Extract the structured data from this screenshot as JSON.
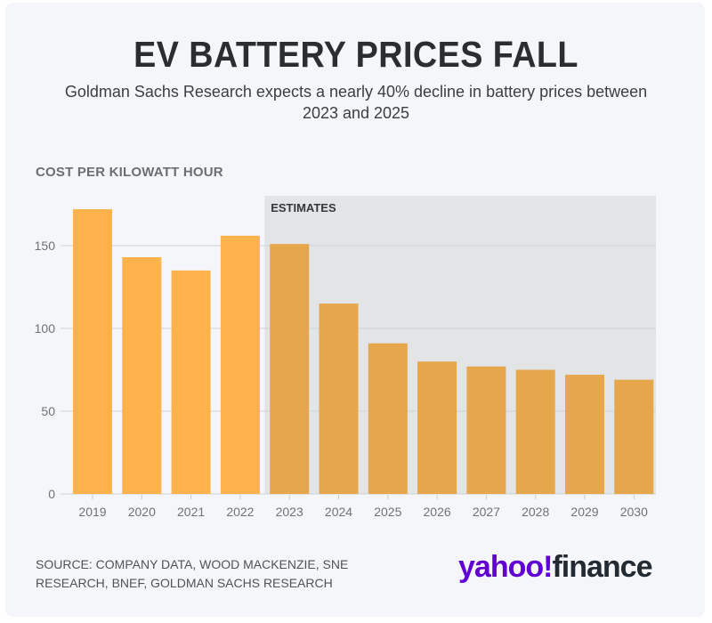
{
  "title": "EV BATTERY PRICES FALL",
  "subtitle": "Goldman Sachs Research expects a nearly 40% decline in battery prices between 2023 and 2025",
  "source": "SOURCE: COMPANY DATA, WOOD MACKENZIE, SNE RESEARCH, BNEF, GOLDMAN SACHS RESEARCH",
  "logo": {
    "brand": "yahoo!",
    "product": "finance",
    "brand_color": "#6001d2",
    "product_color": "#232a31"
  },
  "colors": {
    "actual_bar": "#fdb24b",
    "estimate_bar": "#e5a64c",
    "estimate_region": "#e2e4e6",
    "gridline": "#cfd3d8"
  },
  "chart_data": {
    "type": "bar",
    "title": "EV BATTERY PRICES FALL",
    "ylabel": "COST PER KILOWATT HOUR",
    "xlabel": "",
    "categories": [
      "2019",
      "2020",
      "2021",
      "2022",
      "2023",
      "2024",
      "2025",
      "2026",
      "2027",
      "2028",
      "2029",
      "2030"
    ],
    "values": [
      172,
      143,
      135,
      156,
      151,
      115,
      91,
      80,
      77,
      75,
      72,
      69
    ],
    "estimate_start": "2023",
    "annotation": "ESTIMATES",
    "yticks": [
      0,
      50,
      100,
      150
    ],
    "ylim": [
      0,
      180
    ],
    "grid": true,
    "legend": "none"
  }
}
